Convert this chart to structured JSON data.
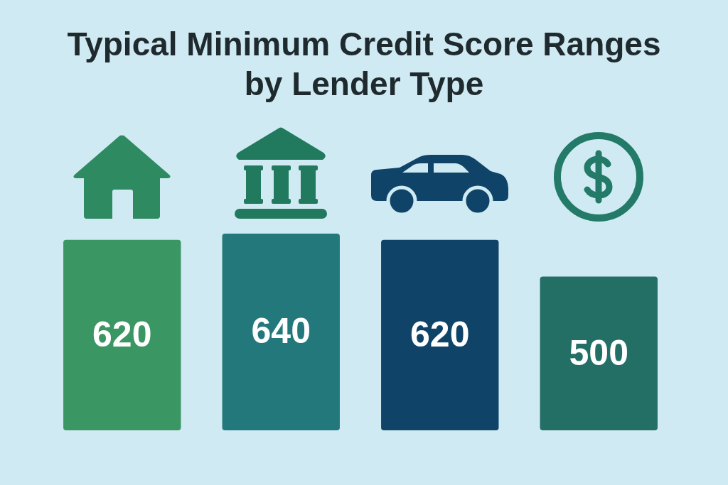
{
  "chart_data": {
    "type": "bar",
    "title": "Typical Minimum Credit Score Ranges by Lender Type",
    "categories": [
      null,
      null,
      null,
      null
    ],
    "values": [
      620,
      640,
      620,
      500
    ],
    "colors": [
      "#3a9662",
      "#23787c",
      "#0f4468",
      "#236f66"
    ],
    "data_labels": true,
    "tick_labels": false,
    "legend": false
  }
}
